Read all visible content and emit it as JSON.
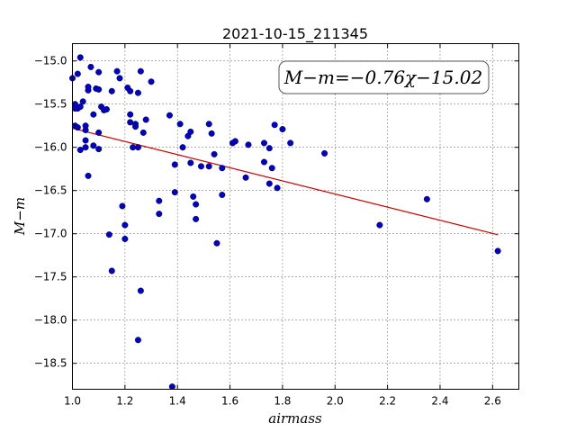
{
  "chart_data": {
    "type": "scatter",
    "title": "2021-10-15_211345",
    "xlabel": "airmass",
    "ylabel": "M−m",
    "xlim": [
      1.0,
      2.7
    ],
    "ylim": [
      -18.8,
      -14.8
    ],
    "y_inverted": false,
    "grid": true,
    "x_ticks": [
      1.0,
      1.2,
      1.4,
      1.6,
      1.8,
      2.0,
      2.2,
      2.4,
      2.6
    ],
    "x_tick_labels": [
      "1.0",
      "1.2",
      "1.4",
      "1.6",
      "1.8",
      "2.0",
      "2.2",
      "2.4",
      "2.6"
    ],
    "y_ticks": [
      -15.0,
      -15.5,
      -16.0,
      -16.5,
      -17.0,
      -17.5,
      -18.0,
      -18.5
    ],
    "y_tick_labels": [
      "−15.0",
      "−15.5",
      "−16.0",
      "−16.5",
      "−17.0",
      "−17.5",
      "−18.0",
      "−18.5"
    ],
    "annotation": "M−m=−0.76χ−15.02",
    "marker_color": "#0000cc",
    "fit_color": "#cc0000",
    "fit": {
      "slope": -0.76,
      "intercept": -15.02,
      "x_range": [
        1.0,
        2.62
      ]
    },
    "points": [
      [
        1.0,
        -15.2
      ],
      [
        1.01,
        -15.5
      ],
      [
        1.01,
        -15.55
      ],
      [
        1.01,
        -15.75
      ],
      [
        1.02,
        -15.15
      ],
      [
        1.02,
        -15.55
      ],
      [
        1.03,
        -14.96
      ],
      [
        1.03,
        -15.53
      ],
      [
        1.02,
        -15.77
      ],
      [
        1.03,
        -16.03
      ],
      [
        1.04,
        -15.47
      ],
      [
        1.05,
        -15.75
      ],
      [
        1.05,
        -15.8
      ],
      [
        1.05,
        -15.92
      ],
      [
        1.05,
        -16.0
      ],
      [
        1.06,
        -15.3
      ],
      [
        1.06,
        -15.34
      ],
      [
        1.06,
        -16.33
      ],
      [
        1.07,
        -15.07
      ],
      [
        1.08,
        -15.62
      ],
      [
        1.08,
        -15.98
      ],
      [
        1.09,
        -15.32
      ],
      [
        1.1,
        -15.13
      ],
      [
        1.1,
        -15.33
      ],
      [
        1.1,
        -15.83
      ],
      [
        1.1,
        -16.02
      ],
      [
        1.11,
        -15.53
      ],
      [
        1.12,
        -15.57
      ],
      [
        1.13,
        -15.56
      ],
      [
        1.14,
        -17.01
      ],
      [
        1.15,
        -15.35
      ],
      [
        1.15,
        -17.43
      ],
      [
        1.17,
        -15.12
      ],
      [
        1.18,
        -15.2
      ],
      [
        1.19,
        -16.68
      ],
      [
        1.2,
        -16.9
      ],
      [
        1.2,
        -17.06
      ],
      [
        1.21,
        -15.31
      ],
      [
        1.22,
        -15.35
      ],
      [
        1.22,
        -15.62
      ],
      [
        1.22,
        -15.71
      ],
      [
        1.23,
        -16.0
      ],
      [
        1.24,
        -15.73
      ],
      [
        1.24,
        -15.76
      ],
      [
        1.25,
        -15.37
      ],
      [
        1.25,
        -16.0
      ],
      [
        1.25,
        -18.23
      ],
      [
        1.26,
        -15.12
      ],
      [
        1.26,
        -17.66
      ],
      [
        1.27,
        -15.83
      ],
      [
        1.28,
        -15.68
      ],
      [
        1.3,
        -15.24
      ],
      [
        1.33,
        -16.62
      ],
      [
        1.33,
        -16.77
      ],
      [
        1.37,
        -15.63
      ],
      [
        1.38,
        -18.77
      ],
      [
        1.39,
        -16.2
      ],
      [
        1.39,
        -16.52
      ],
      [
        1.41,
        -15.73
      ],
      [
        1.42,
        -16.0
      ],
      [
        1.44,
        -15.87
      ],
      [
        1.45,
        -15.82
      ],
      [
        1.45,
        -16.18
      ],
      [
        1.46,
        -16.57
      ],
      [
        1.47,
        -16.66
      ],
      [
        1.47,
        -16.83
      ],
      [
        1.49,
        -16.22
      ],
      [
        1.52,
        -15.73
      ],
      [
        1.52,
        -16.22
      ],
      [
        1.53,
        -15.84
      ],
      [
        1.54,
        -16.08
      ],
      [
        1.55,
        -17.11
      ],
      [
        1.57,
        -16.24
      ],
      [
        1.57,
        -16.55
      ],
      [
        1.61,
        -15.95
      ],
      [
        1.62,
        -15.93
      ],
      [
        1.66,
        -16.35
      ],
      [
        1.67,
        -15.97
      ],
      [
        1.73,
        -15.95
      ],
      [
        1.73,
        -16.17
      ],
      [
        1.75,
        -16.01
      ],
      [
        1.75,
        -16.42
      ],
      [
        1.76,
        -16.24
      ],
      [
        1.77,
        -15.74
      ],
      [
        1.78,
        -16.47
      ],
      [
        1.8,
        -15.79
      ],
      [
        1.83,
        -15.95
      ],
      [
        1.96,
        -16.07
      ],
      [
        2.17,
        -16.9
      ],
      [
        2.35,
        -16.6
      ],
      [
        2.62,
        -17.2
      ]
    ]
  }
}
